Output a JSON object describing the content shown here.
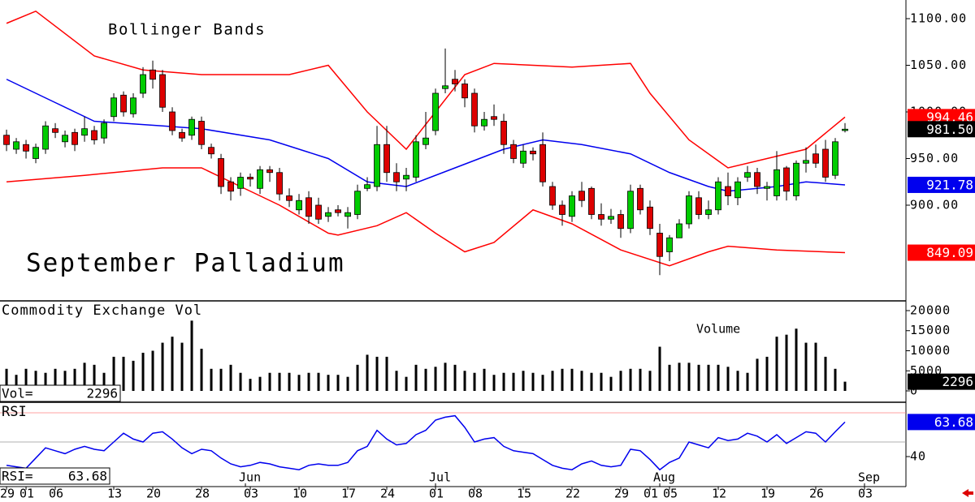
{
  "chart_data": [
    {
      "type": "candlestick",
      "title": "September Palladium",
      "annotation": "Bollinger Bands",
      "x": [
        0,
        1,
        2,
        3,
        4,
        5,
        6,
        7,
        8,
        9,
        10,
        11,
        12,
        13,
        14,
        15,
        16,
        17,
        18,
        19,
        20,
        21,
        22,
        23,
        24,
        25,
        26,
        27,
        28,
        29,
        30,
        31,
        32,
        33,
        34,
        35,
        36,
        37,
        38,
        39,
        40,
        41,
        42,
        43,
        44,
        45,
        46,
        47,
        48,
        49,
        50,
        51,
        52,
        53,
        54,
        55,
        56,
        57,
        58,
        59,
        60,
        61,
        62,
        63,
        64,
        65,
        66,
        67,
        68,
        69,
        70,
        71,
        72,
        73,
        74,
        75,
        76,
        77,
        78,
        79,
        80,
        81,
        82,
        83,
        84,
        85,
        86
      ],
      "open": [
        975,
        960,
        965,
        950,
        960,
        982,
        968,
        978,
        975,
        980,
        972,
        995,
        1018,
        998,
        1020,
        1045,
        1040,
        1000,
        978,
        975,
        990,
        962,
        950,
        925,
        918,
        930,
        918,
        938,
        935,
        910,
        895,
        908,
        900,
        888,
        895,
        888,
        890,
        918,
        920,
        965,
        935,
        928,
        930,
        965,
        980,
        1025,
        1035,
        1030,
        1020,
        985,
        995,
        990,
        965,
        945,
        958,
        965,
        920,
        900,
        888,
        915,
        918,
        890,
        885,
        890,
        875,
        918,
        898,
        870,
        850,
        865,
        880,
        908,
        890,
        895,
        920,
        908,
        930,
        935,
        918,
        910,
        940,
        910,
        945,
        955,
        960,
        932,
        980
      ],
      "high": [
        981,
        972,
        970,
        966,
        990,
        988,
        980,
        982,
        995,
        985,
        992,
        1020,
        1022,
        1020,
        1048,
        1055,
        1045,
        1005,
        982,
        995,
        995,
        966,
        955,
        930,
        935,
        934,
        942,
        942,
        940,
        918,
        912,
        915,
        908,
        898,
        900,
        898,
        922,
        930,
        985,
        985,
        945,
        940,
        975,
        1000,
        1025,
        1068,
        1045,
        1035,
        1025,
        1000,
        1008,
        998,
        970,
        965,
        962,
        978,
        925,
        905,
        915,
        925,
        920,
        902,
        896,
        895,
        922,
        922,
        905,
        880,
        868,
        885,
        915,
        915,
        905,
        930,
        935,
        930,
        942,
        940,
        925,
        958,
        942,
        948,
        962,
        965,
        970,
        972,
        988
      ],
      "low": [
        958,
        955,
        950,
        945,
        955,
        972,
        962,
        958,
        968,
        965,
        966,
        990,
        995,
        994,
        1015,
        1025,
        1000,
        975,
        968,
        970,
        960,
        950,
        912,
        905,
        910,
        920,
        912,
        925,
        905,
        898,
        890,
        880,
        880,
        882,
        888,
        875,
        885,
        915,
        915,
        925,
        915,
        915,
        925,
        960,
        975,
        1020,
        1022,
        1005,
        978,
        980,
        985,
        955,
        945,
        940,
        948,
        920,
        895,
        878,
        882,
        898,
        885,
        878,
        880,
        865,
        870,
        890,
        868,
        825,
        840,
        865,
        875,
        885,
        885,
        890,
        900,
        900,
        925,
        912,
        905,
        905,
        905,
        905,
        935,
        940,
        925,
        928,
        978
      ],
      "close": [
        965,
        968,
        958,
        962,
        985,
        978,
        975,
        965,
        982,
        970,
        988,
        1015,
        1000,
        1015,
        1040,
        1035,
        1005,
        980,
        972,
        992,
        965,
        955,
        920,
        915,
        930,
        928,
        938,
        935,
        912,
        905,
        905,
        888,
        885,
        892,
        892,
        892,
        915,
        922,
        965,
        935,
        925,
        932,
        968,
        972,
        1020,
        1028,
        1030,
        1015,
        985,
        992,
        992,
        965,
        950,
        958,
        955,
        925,
        900,
        890,
        910,
        905,
        890,
        885,
        888,
        875,
        915,
        895,
        875,
        845,
        865,
        880,
        910,
        890,
        895,
        925,
        910,
        925,
        935,
        920,
        920,
        938,
        915,
        945,
        948,
        945,
        930,
        968,
        981.5
      ],
      "last_close_label": "981.50",
      "up_color": "#00cc00",
      "down_color": "#dd0000",
      "bands": [
        {
          "color": "#ff0000",
          "x": [
            0,
            3,
            9,
            14,
            20,
            29,
            33,
            37,
            41,
            44,
            47,
            50,
            58,
            64,
            66,
            70,
            74,
            78,
            82,
            86
          ],
          "values": [
            1095,
            1108,
            1060,
            1045,
            1040,
            1040,
            1050,
            1000,
            960,
            1000,
            1040,
            1052,
            1048,
            1052,
            1020,
            970,
            940,
            950,
            960,
            994.46
          ]
        },
        {
          "color": "#0000ee",
          "x": [
            0,
            5,
            9,
            16,
            20,
            27,
            33,
            37,
            41,
            46,
            51,
            55,
            59,
            64,
            68,
            72,
            74,
            79,
            82,
            86
          ],
          "values": [
            1035,
            1010,
            990,
            985,
            982,
            970,
            950,
            925,
            920,
            940,
            960,
            970,
            965,
            955,
            935,
            920,
            915,
            920,
            925,
            921.78
          ]
        },
        {
          "color": "#ff0000",
          "x": [
            0,
            8,
            16,
            20,
            24,
            28,
            33,
            34,
            38,
            41,
            44,
            47,
            50,
            54,
            58,
            63,
            68,
            72,
            74,
            79,
            86
          ],
          "values": [
            925,
            932,
            940,
            940,
            920,
            900,
            870,
            868,
            878,
            892,
            870,
            850,
            860,
            895,
            880,
            852,
            835,
            850,
            856,
            852,
            849.09
          ]
        }
      ],
      "xlim": [
        -0.67,
        92.25
      ],
      "ylim": [
        798.26,
        1120
      ],
      "yticks": [
        {
          "value": 1100,
          "label": "1100.00"
        },
        {
          "value": 1050,
          "label": "1050.00"
        },
        {
          "value": 1000,
          "label": "1000.00"
        },
        {
          "value": 950,
          "label": "950.00"
        },
        {
          "value": 900,
          "label": "900.00"
        }
      ],
      "xticks": [
        {
          "value": 0,
          "label": "29"
        },
        {
          "value": 2,
          "label": "01"
        },
        {
          "value": 5,
          "label": "06"
        },
        {
          "value": 11,
          "label": "13"
        },
        {
          "value": 15,
          "label": "20"
        },
        {
          "value": 20,
          "label": "28"
        },
        {
          "value": 25,
          "label": "03"
        },
        {
          "value": 30,
          "label": "10"
        },
        {
          "value": 35,
          "label": "17"
        },
        {
          "value": 39,
          "label": "24"
        },
        {
          "value": 44,
          "label": "01"
        },
        {
          "value": 48,
          "label": "08"
        },
        {
          "value": 53,
          "label": "15"
        },
        {
          "value": 58,
          "label": "22"
        },
        {
          "value": 63,
          "label": "29"
        },
        {
          "value": 66,
          "label": "01"
        },
        {
          "value": 68,
          "label": "05"
        },
        {
          "value": 73,
          "label": "12"
        },
        {
          "value": 78,
          "label": "19"
        },
        {
          "value": 83,
          "label": "26"
        },
        {
          "value": 88,
          "label": "03"
        }
      ],
      "month_ticks": [
        {
          "value": 24.5,
          "label": "Jun"
        },
        {
          "value": 44,
          "label": "Jul"
        },
        {
          "value": 67,
          "label": "Aug"
        },
        {
          "value": 88,
          "label": "Sep"
        }
      ]
    },
    {
      "type": "bar",
      "title": "Commodity Exchange Vol",
      "annotation": "Volume",
      "readout_label": "Vol=",
      "color": "#000000",
      "x": [
        0,
        1,
        2,
        3,
        4,
        5,
        6,
        7,
        8,
        9,
        10,
        11,
        12,
        13,
        14,
        15,
        16,
        17,
        18,
        19,
        20,
        21,
        22,
        23,
        24,
        25,
        26,
        27,
        28,
        29,
        30,
        31,
        32,
        33,
        34,
        35,
        36,
        37,
        38,
        39,
        40,
        41,
        42,
        43,
        44,
        45,
        46,
        47,
        48,
        49,
        50,
        51,
        52,
        53,
        54,
        55,
        56,
        57,
        58,
        59,
        60,
        61,
        62,
        63,
        64,
        65,
        66,
        67,
        68,
        69,
        70,
        71,
        72,
        73,
        74,
        75,
        76,
        77,
        78,
        79,
        80,
        81,
        82,
        83,
        84,
        85,
        86
      ],
      "values": [
        5500,
        4000,
        5500,
        5000,
        4500,
        5500,
        5000,
        5500,
        7000,
        6500,
        4500,
        8500,
        8500,
        7500,
        9500,
        10000,
        12000,
        13500,
        12000,
        17500,
        10500,
        5500,
        5500,
        6500,
        4500,
        3000,
        3500,
        4500,
        4500,
        4500,
        4000,
        4500,
        4500,
        4000,
        4000,
        3500,
        6500,
        9000,
        8500,
        8500,
        5000,
        3500,
        6500,
        5500,
        6000,
        7000,
        6500,
        5000,
        4500,
        5500,
        4000,
        4500,
        4500,
        5000,
        4500,
        4000,
        5000,
        5500,
        5500,
        5000,
        4500,
        4500,
        3500,
        5000,
        5500,
        5500,
        5000,
        11000,
        6500,
        7000,
        7000,
        6500,
        6500,
        6500,
        6000,
        5000,
        4500,
        8000,
        8500,
        13500,
        14000,
        15500,
        12000,
        12000,
        8500,
        5500,
        2296
      ],
      "xlim": [
        -0.67,
        92.25
      ],
      "ylim": [
        -2626,
        22222
      ],
      "yticks": [
        20000,
        15000,
        10000,
        5000,
        0
      ]
    },
    {
      "type": "line",
      "title": "RSI",
      "readout_label": "RSI=",
      "color": "#0000ee",
      "x": [
        0,
        1,
        2,
        3,
        4,
        5,
        6,
        7,
        8,
        9,
        10,
        11,
        12,
        13,
        14,
        15,
        16,
        17,
        18,
        19,
        20,
        21,
        22,
        23,
        24,
        25,
        26,
        27,
        28,
        29,
        30,
        31,
        32,
        33,
        34,
        35,
        36,
        37,
        38,
        39,
        40,
        41,
        42,
        43,
        44,
        45,
        46,
        47,
        48,
        49,
        50,
        51,
        52,
        53,
        54,
        55,
        56,
        57,
        58,
        59,
        60,
        61,
        62,
        63,
        64,
        65,
        66,
        67,
        68,
        69,
        70,
        71,
        72,
        73,
        74,
        75,
        76,
        77,
        78,
        79,
        80,
        81,
        82,
        83,
        84,
        85,
        86
      ],
      "values": [
        34,
        33,
        32,
        39,
        46,
        44,
        42,
        45,
        47,
        45,
        44,
        50,
        56,
        52,
        50,
        56,
        57,
        52,
        46,
        42,
        45,
        44,
        39,
        35,
        33,
        34,
        36,
        35,
        33,
        32,
        31,
        34,
        35,
        34,
        34,
        36,
        44,
        47,
        58,
        52,
        48,
        49,
        55,
        58,
        65,
        67,
        68,
        60,
        50,
        52,
        53,
        47,
        44,
        43,
        42,
        38,
        34,
        32,
        31,
        35,
        37,
        34,
        33,
        34,
        45,
        44,
        38,
        31,
        36,
        39,
        50,
        48,
        46,
        53,
        51,
        52,
        56,
        54,
        50,
        55,
        49,
        53,
        57,
        56,
        50,
        57,
        63.68
      ],
      "upper_level": 70,
      "mid_level": 50,
      "xlim": [
        -0.67,
        92.25
      ],
      "ylim": [
        19.44,
        76.67
      ],
      "yticks": [
        40
      ]
    }
  ]
}
